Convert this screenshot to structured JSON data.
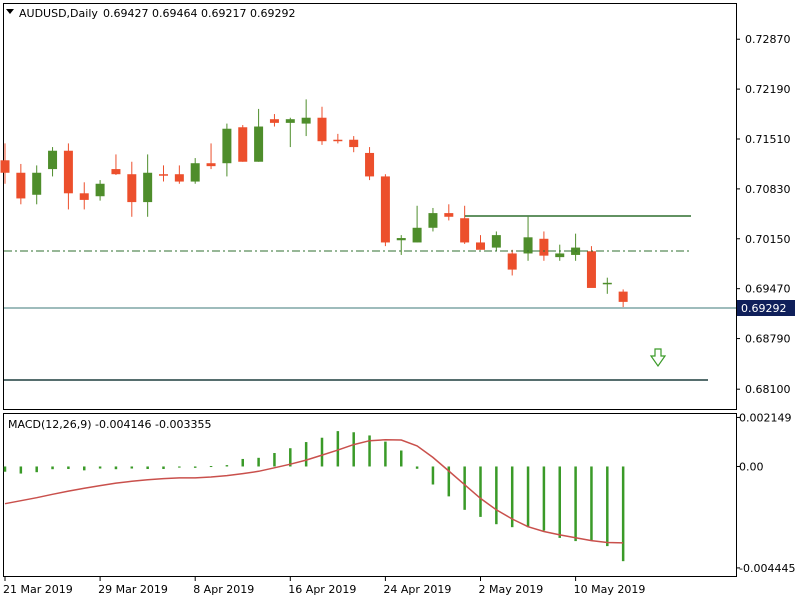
{
  "header": {
    "symbol": "AUDUSD,Daily",
    "ohlc": "0.69427 0.69464 0.69217 0.69292"
  },
  "colors": {
    "bull": "#4e8d2b",
    "bear": "#ec4f2c",
    "line": "#2f6f2f",
    "signal": "#c9504c",
    "label_bg": "#0f1f5a"
  },
  "chart_data": [
    {
      "type": "candlestick",
      "title": "AUDUSD,Daily",
      "ylim": [
        0.6783,
        0.7335
      ],
      "y_ticks": [
        "0.72870",
        "0.72190",
        "0.71510",
        "0.70830",
        "0.70150",
        "0.69470",
        "0.68790",
        "0.68100"
      ],
      "current_price": "0.69292",
      "x_labels": [
        "21 Mar 2019",
        "29 Mar 2019",
        "8 Apr 2019",
        "16 Apr 2019",
        "24 Apr 2019",
        "2 May 2019",
        "10 May 2019"
      ],
      "candles": [
        {
          "o": 0.7122,
          "h": 0.7145,
          "l": 0.709,
          "c": 0.7105
        },
        {
          "o": 0.7105,
          "h": 0.7117,
          "l": 0.7062,
          "c": 0.707
        },
        {
          "o": 0.7075,
          "h": 0.7115,
          "l": 0.7062,
          "c": 0.7105
        },
        {
          "o": 0.711,
          "h": 0.714,
          "l": 0.71,
          "c": 0.7135
        },
        {
          "o": 0.7135,
          "h": 0.7145,
          "l": 0.7055,
          "c": 0.7077
        },
        {
          "o": 0.7077,
          "h": 0.7092,
          "l": 0.7055,
          "c": 0.7068
        },
        {
          "o": 0.7073,
          "h": 0.7095,
          "l": 0.7067,
          "c": 0.709
        },
        {
          "o": 0.711,
          "h": 0.713,
          "l": 0.7102,
          "c": 0.7103
        },
        {
          "o": 0.7103,
          "h": 0.712,
          "l": 0.7045,
          "c": 0.7065
        },
        {
          "o": 0.7065,
          "h": 0.713,
          "l": 0.7045,
          "c": 0.7105
        },
        {
          "o": 0.7103,
          "h": 0.7115,
          "l": 0.7093,
          "c": 0.7101
        },
        {
          "o": 0.7103,
          "h": 0.7115,
          "l": 0.709,
          "c": 0.7093
        },
        {
          "o": 0.7093,
          "h": 0.7125,
          "l": 0.709,
          "c": 0.7118
        },
        {
          "o": 0.7118,
          "h": 0.7145,
          "l": 0.711,
          "c": 0.7114
        },
        {
          "o": 0.7118,
          "h": 0.7172,
          "l": 0.71,
          "c": 0.7165
        },
        {
          "o": 0.7167,
          "h": 0.717,
          "l": 0.712,
          "c": 0.712
        },
        {
          "o": 0.712,
          "h": 0.7192,
          "l": 0.712,
          "c": 0.7168
        },
        {
          "o": 0.7178,
          "h": 0.7185,
          "l": 0.7168,
          "c": 0.7173
        },
        {
          "o": 0.7173,
          "h": 0.718,
          "l": 0.714,
          "c": 0.7178
        },
        {
          "o": 0.7172,
          "h": 0.7205,
          "l": 0.7155,
          "c": 0.718
        },
        {
          "o": 0.718,
          "h": 0.7195,
          "l": 0.7143,
          "c": 0.7148
        },
        {
          "o": 0.715,
          "h": 0.7158,
          "l": 0.7145,
          "c": 0.7148
        },
        {
          "o": 0.715,
          "h": 0.7155,
          "l": 0.7133,
          "c": 0.714
        },
        {
          "o": 0.7132,
          "h": 0.714,
          "l": 0.7095,
          "c": 0.71
        },
        {
          "o": 0.71,
          "h": 0.7103,
          "l": 0.7005,
          "c": 0.701
        },
        {
          "o": 0.7013,
          "h": 0.702,
          "l": 0.6993,
          "c": 0.7016
        },
        {
          "o": 0.701,
          "h": 0.706,
          "l": 0.701,
          "c": 0.703
        },
        {
          "o": 0.703,
          "h": 0.7057,
          "l": 0.7025,
          "c": 0.705
        },
        {
          "o": 0.705,
          "h": 0.7062,
          "l": 0.704,
          "c": 0.7045
        },
        {
          "o": 0.7043,
          "h": 0.706,
          "l": 0.7008,
          "c": 0.701
        },
        {
          "o": 0.701,
          "h": 0.702,
          "l": 0.7,
          "c": 0.7
        },
        {
          "o": 0.7003,
          "h": 0.7025,
          "l": 0.6998,
          "c": 0.702
        },
        {
          "o": 0.6995,
          "h": 0.7,
          "l": 0.6965,
          "c": 0.6973
        },
        {
          "o": 0.6995,
          "h": 0.7045,
          "l": 0.6985,
          "c": 0.7017
        },
        {
          "o": 0.7015,
          "h": 0.7025,
          "l": 0.6985,
          "c": 0.6992
        },
        {
          "o": 0.699,
          "h": 0.7007,
          "l": 0.6985,
          "c": 0.6995
        },
        {
          "o": 0.6993,
          "h": 0.7022,
          "l": 0.6985,
          "c": 0.7003
        },
        {
          "o": 0.6998,
          "h": 0.7005,
          "l": 0.695,
          "c": 0.6948
        },
        {
          "o": 0.6955,
          "h": 0.6962,
          "l": 0.694,
          "c": 0.6955
        },
        {
          "o": 0.6943,
          "h": 0.6946,
          "l": 0.6922,
          "c": 0.6929
        }
      ]
    },
    {
      "type": "histogram+line",
      "title": "MACD(12,26,9) -0.004146 -0.003355",
      "ylim": [
        -0.0048,
        0.0023
      ],
      "y_ticks": [
        "0.002149",
        "0.00",
        "-0.004445"
      ],
      "histogram": [
        -0.00023,
        -0.00031,
        -0.00025,
        -0.00012,
        -0.00011,
        -0.00017,
        -9e-05,
        -0.00012,
        -9e-05,
        -0.00011,
        -0.00011,
        -5e-05,
        -6e-05,
        2e-05,
        6e-05,
        0.00033,
        0.00038,
        0.00059,
        0.0008,
        0.00107,
        0.00126,
        0.00155,
        0.0015,
        0.00136,
        0.00109,
        0.0007,
        -0.0001,
        -0.00079,
        -0.00131,
        -0.0019,
        -0.00221,
        -0.00253,
        -0.00266,
        -0.00266,
        -0.00281,
        -0.00313,
        -0.00327,
        -0.00323,
        -0.00349,
        -0.00415
      ],
      "signal": [
        -0.00163,
        -0.0015,
        -0.00137,
        -0.00122,
        -0.00108,
        -0.00095,
        -0.00084,
        -0.00073,
        -0.00065,
        -0.00058,
        -0.00053,
        -0.0005,
        -0.0005,
        -0.00046,
        -0.0004,
        -0.00031,
        -0.00021,
        -6e-05,
        0.0001,
        0.00028,
        0.0005,
        0.00072,
        0.00096,
        0.00113,
        0.00117,
        0.00116,
        0.0009,
        0.0004,
        -0.0002,
        -0.0008,
        -0.0014,
        -0.0019,
        -0.0023,
        -0.00264,
        -0.00285,
        -0.003,
        -0.00312,
        -0.00325,
        -0.00333,
        -0.00335
      ]
    }
  ]
}
